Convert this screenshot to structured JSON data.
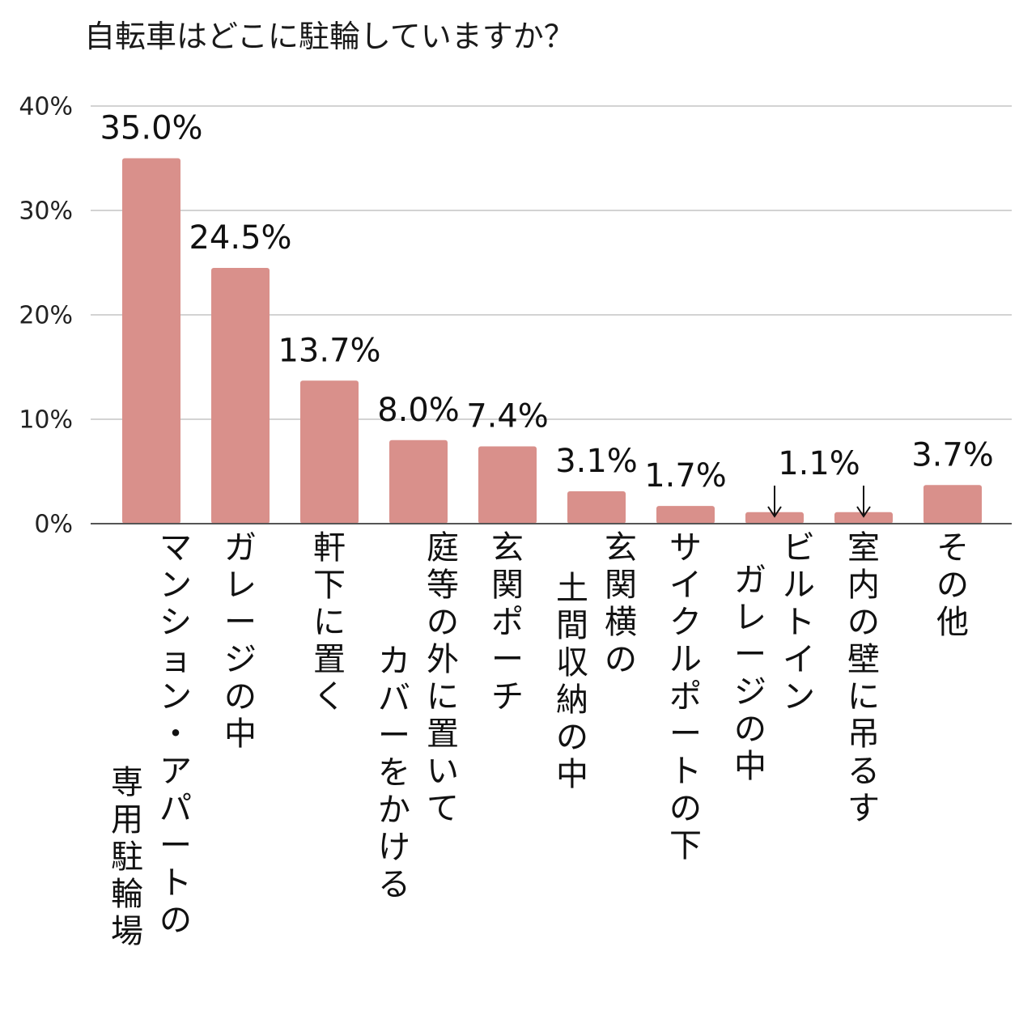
{
  "chart_data": {
    "type": "bar",
    "title": "自転車はどこに駐輪していますか？",
    "xlabel": "",
    "ylabel": "",
    "ylim": [
      0,
      40
    ],
    "yticks": [
      "0%",
      "10%",
      "20%",
      "30%",
      "40%"
    ],
    "grid": true,
    "categories": [
      [
        "マンション・アパートの",
        "専用駐輪場"
      ],
      [
        "ガレージの中"
      ],
      [
        "軒下に置く"
      ],
      [
        "庭等の外に置いて",
        "カバーをかける"
      ],
      [
        "玄関ポーチ"
      ],
      [
        "玄関横の",
        "土間収納の中"
      ],
      [
        "サイクルポートの下"
      ],
      [
        "ビルトイン",
        "ガレージの中"
      ],
      [
        "室内の壁に吊るす"
      ],
      [
        "その他"
      ]
    ],
    "values": [
      35.0,
      24.5,
      13.7,
      8.0,
      7.4,
      3.1,
      1.7,
      1.1,
      1.1,
      3.7
    ],
    "data_labels": [
      "35.0%",
      "24.5%",
      "13.7%",
      "8.0%",
      "7.4%",
      "3.1%",
      "1.7%",
      "1.1%",
      "",
      "3.7%"
    ],
    "bar_color": "#d9908b",
    "grid_color": "#d3d3d3",
    "axis_color": "#555555"
  }
}
